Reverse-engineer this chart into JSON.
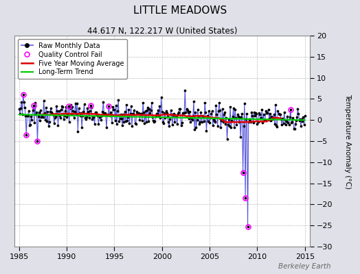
{
  "title": "LITTLE MEADOWS",
  "subtitle": "44.617 N, 122.217 W (United States)",
  "watermark": "Berkeley Earth",
  "ylabel": "Temperature Anomaly (°C)",
  "xlim": [
    1984.5,
    2015.5
  ],
  "ylim": [
    -30,
    20
  ],
  "yticks": [
    -30,
    -25,
    -20,
    -15,
    -10,
    -5,
    0,
    5,
    10,
    15,
    20
  ],
  "xticks": [
    1985,
    1990,
    1995,
    2000,
    2005,
    2010,
    2015
  ],
  "bg_color": "#e0e0e8",
  "plot_bg": "#ffffff",
  "raw_color": "#5555dd",
  "raw_dot_color": "#000000",
  "qc_color": "#ff00ff",
  "moving_avg_color": "#dd0000",
  "trend_color": "#00cc00",
  "seed": 42,
  "noise_std": 1.6,
  "base_anomaly": 1.8,
  "trend_slope": -0.055,
  "outlier_times": [
    2008.25,
    2008.5,
    2008.75,
    2009.0
  ],
  "outlier_vals": [
    -4.0,
    -12.5,
    -18.5,
    -25.3
  ],
  "qc_times": [
    1985.42,
    1985.75,
    1986.5,
    1986.92,
    1990.17,
    1992.5,
    1994.42,
    2013.5
  ],
  "qc_vals": [
    6.0,
    -3.5,
    3.5,
    -5.0,
    3.2,
    3.5,
    3.2,
    2.5
  ]
}
